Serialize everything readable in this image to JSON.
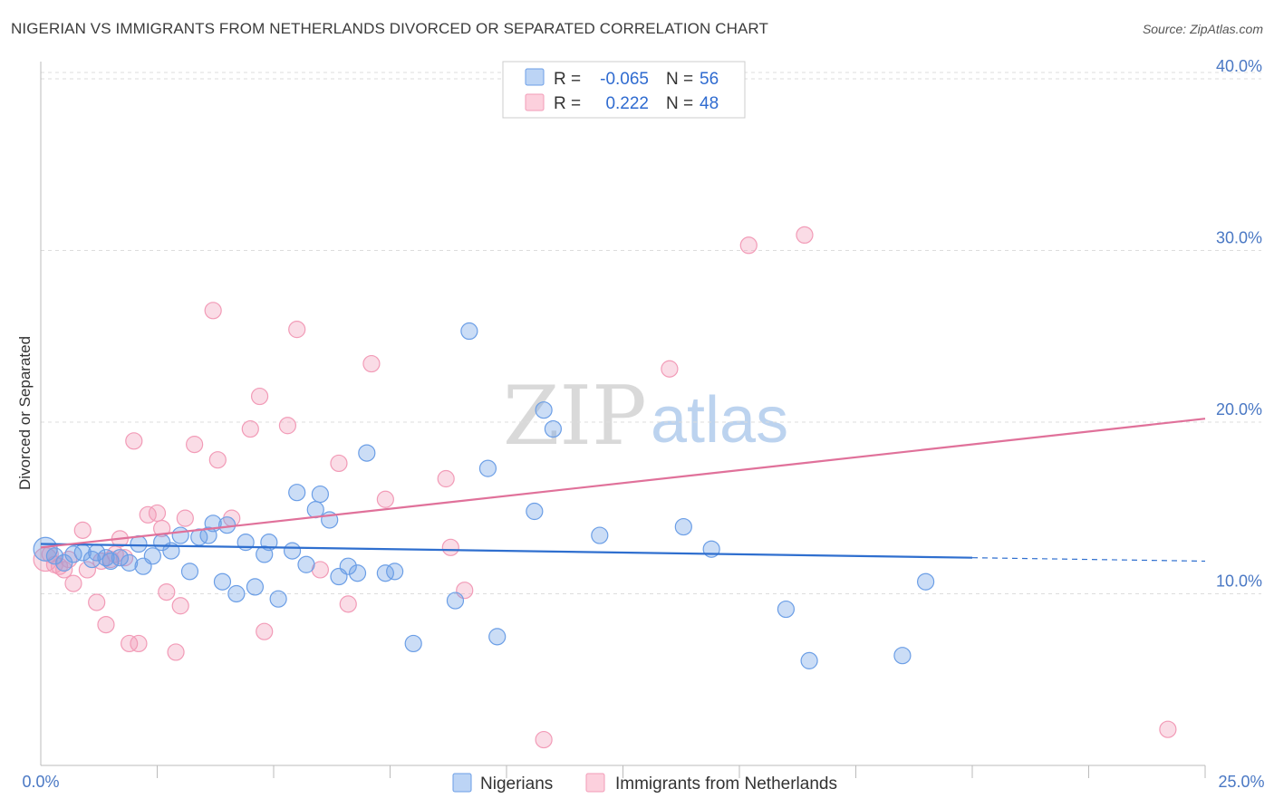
{
  "header": {
    "title": "NIGERIAN VS IMMIGRANTS FROM NETHERLANDS DIVORCED OR SEPARATED CORRELATION CHART",
    "source": "Source: ZipAtlas.com"
  },
  "watermark": {
    "zip": "ZIP",
    "atlas": "atlas"
  },
  "legend": {
    "r_label": "R =",
    "n_label": "N =",
    "rows": [
      {
        "r": "-0.065",
        "n": "56"
      },
      {
        "r": "0.222",
        "n": "48"
      }
    ]
  },
  "chart_data": {
    "type": "scatter",
    "title": "NIGERIAN VS IMMIGRANTS FROM NETHERLANDS DIVORCED OR SEPARATED CORRELATION CHART",
    "xlabel": "",
    "ylabel": "Divorced or Separated",
    "xlim": [
      0,
      25
    ],
    "ylim": [
      0,
      41
    ],
    "x_tick_labels": [
      "0.0%",
      "25.0%"
    ],
    "y_ticks": [
      10,
      20,
      30,
      40
    ],
    "y_tick_labels": [
      "10.0%",
      "20.0%",
      "30.0%",
      "40.0%"
    ],
    "grid": true,
    "legend_position": "top-center",
    "colors": {
      "nigerians": "#6b9ee6",
      "netherlands": "#f29bb7",
      "blue_line": "#2f6fcf",
      "pink_line": "#e0719a"
    },
    "series": [
      {
        "name": "Nigerians",
        "r": -0.065,
        "n": 56,
        "trend": {
          "x0": 0,
          "y0": 12.9,
          "x1": 20,
          "y1": 12.1,
          "dash_to_x": 25,
          "dash_to_y": 11.9
        },
        "points": [
          [
            0.1,
            12.6
          ],
          [
            0.3,
            12.2
          ],
          [
            0.5,
            11.8
          ],
          [
            0.7,
            12.3
          ],
          [
            0.9,
            12.4
          ],
          [
            1.1,
            12.0
          ],
          [
            1.2,
            12.4
          ],
          [
            1.4,
            12.1
          ],
          [
            1.5,
            11.9
          ],
          [
            1.7,
            12.1
          ],
          [
            1.9,
            11.8
          ],
          [
            2.1,
            12.9
          ],
          [
            2.2,
            11.6
          ],
          [
            2.4,
            12.2
          ],
          [
            2.6,
            13.0
          ],
          [
            2.8,
            12.5
          ],
          [
            3.0,
            13.4
          ],
          [
            3.2,
            11.3
          ],
          [
            3.4,
            13.3
          ],
          [
            3.6,
            13.4
          ],
          [
            3.7,
            14.1
          ],
          [
            3.9,
            10.7
          ],
          [
            4.0,
            14.0
          ],
          [
            4.2,
            10.0
          ],
          [
            4.4,
            13.0
          ],
          [
            4.6,
            10.4
          ],
          [
            4.8,
            12.3
          ],
          [
            4.9,
            13.0
          ],
          [
            5.1,
            9.7
          ],
          [
            5.4,
            12.5
          ],
          [
            5.5,
            15.9
          ],
          [
            5.7,
            11.7
          ],
          [
            5.9,
            14.9
          ],
          [
            6.0,
            15.8
          ],
          [
            6.2,
            14.3
          ],
          [
            6.4,
            11.0
          ],
          [
            6.6,
            11.6
          ],
          [
            6.8,
            11.2
          ],
          [
            7.0,
            18.2
          ],
          [
            7.4,
            11.2
          ],
          [
            7.6,
            11.3
          ],
          [
            8.0,
            7.1
          ],
          [
            8.9,
            9.6
          ],
          [
            9.2,
            25.3
          ],
          [
            9.6,
            17.3
          ],
          [
            9.8,
            7.5
          ],
          [
            10.6,
            14.8
          ],
          [
            10.8,
            20.7
          ],
          [
            11.0,
            19.6
          ],
          [
            12.0,
            13.4
          ],
          [
            13.8,
            13.9
          ],
          [
            14.4,
            12.6
          ],
          [
            16.0,
            9.1
          ],
          [
            16.5,
            6.1
          ],
          [
            18.5,
            6.4
          ],
          [
            19.0,
            10.7
          ]
        ]
      },
      {
        "name": "Immigrants from Netherlands",
        "r": 0.222,
        "n": 48,
        "trend": {
          "x0": 0,
          "y0": 12.7,
          "x1": 25,
          "y1": 20.2
        },
        "points": [
          [
            0.1,
            12.0
          ],
          [
            0.3,
            11.7
          ],
          [
            0.5,
            11.4
          ],
          [
            0.7,
            10.6
          ],
          [
            0.9,
            13.7
          ],
          [
            1.0,
            11.4
          ],
          [
            1.2,
            9.5
          ],
          [
            1.4,
            8.2
          ],
          [
            1.5,
            12.0
          ],
          [
            1.7,
            13.2
          ],
          [
            1.8,
            12.1
          ],
          [
            1.9,
            7.1
          ],
          [
            2.0,
            18.9
          ],
          [
            2.1,
            7.1
          ],
          [
            2.3,
            14.6
          ],
          [
            2.5,
            14.7
          ],
          [
            2.6,
            13.8
          ],
          [
            2.7,
            10.1
          ],
          [
            2.9,
            6.6
          ],
          [
            3.0,
            9.3
          ],
          [
            3.1,
            14.4
          ],
          [
            3.3,
            18.7
          ],
          [
            3.7,
            26.5
          ],
          [
            3.8,
            17.8
          ],
          [
            4.1,
            14.4
          ],
          [
            4.5,
            19.6
          ],
          [
            4.7,
            21.5
          ],
          [
            4.8,
            7.8
          ],
          [
            5.3,
            19.8
          ],
          [
            5.5,
            25.4
          ],
          [
            6.0,
            11.4
          ],
          [
            6.4,
            17.6
          ],
          [
            6.6,
            9.4
          ],
          [
            7.1,
            23.4
          ],
          [
            7.4,
            15.5
          ],
          [
            8.7,
            16.7
          ],
          [
            8.8,
            12.7
          ],
          [
            9.1,
            10.2
          ],
          [
            10.8,
            1.5
          ],
          [
            13.5,
            23.1
          ],
          [
            15.2,
            30.3
          ],
          [
            16.4,
            30.9
          ],
          [
            24.2,
            2.1
          ],
          [
            0.2,
            12.3
          ],
          [
            0.4,
            11.6
          ],
          [
            0.6,
            12.0
          ],
          [
            1.3,
            11.9
          ],
          [
            1.6,
            12.3
          ]
        ]
      }
    ]
  },
  "bottom_legend": {
    "items": [
      "Nigerians",
      "Immigrants from Netherlands"
    ]
  }
}
